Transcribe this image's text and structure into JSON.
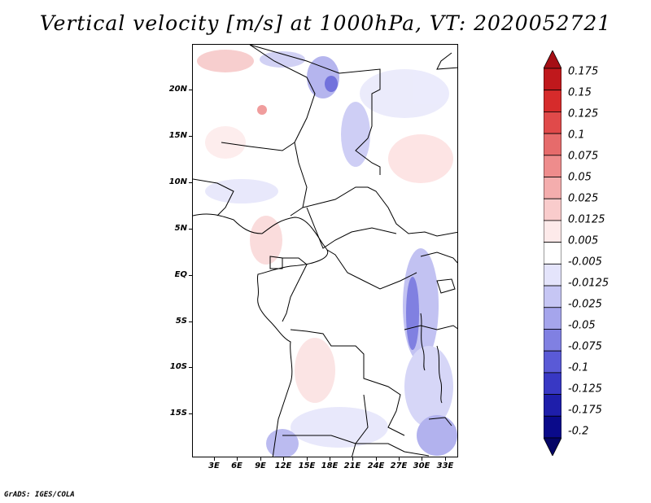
{
  "title": "Vertical velocity [m/s] at 1000hPa, VT: 2020052721",
  "footer": "GrADS: IGES/COLA",
  "map": {
    "lat_labels": [
      "20N",
      "15N",
      "10N",
      "5N",
      "EQ",
      "5S",
      "10S",
      "15S"
    ],
    "lon_labels": [
      "3E",
      "6E",
      "9E",
      "12E",
      "15E",
      "18E",
      "21E",
      "24E",
      "27E",
      "30E",
      "33E"
    ]
  },
  "colorbar": {
    "labels": [
      "0.175",
      "0.15",
      "0.125",
      "0.1",
      "0.075",
      "0.05",
      "0.025",
      "0.0125",
      "0.005",
      "-0.005",
      "-0.0125",
      "-0.025",
      "-0.05",
      "-0.075",
      "-0.1",
      "-0.125",
      "-0.175",
      "-0.2"
    ],
    "colors": [
      "#a50f15",
      "#c0181c",
      "#d62b2b",
      "#e04a4a",
      "#e66b6b",
      "#ee8c8c",
      "#f4adad",
      "#f9cccc",
      "#fdeaea",
      "#ffffff",
      "#e4e4fb",
      "#c6c6f4",
      "#a5a5ec",
      "#8080e2",
      "#5a5ad6",
      "#3838c4",
      "#1e1eaa",
      "#0a0a8a",
      "#050566"
    ]
  }
}
